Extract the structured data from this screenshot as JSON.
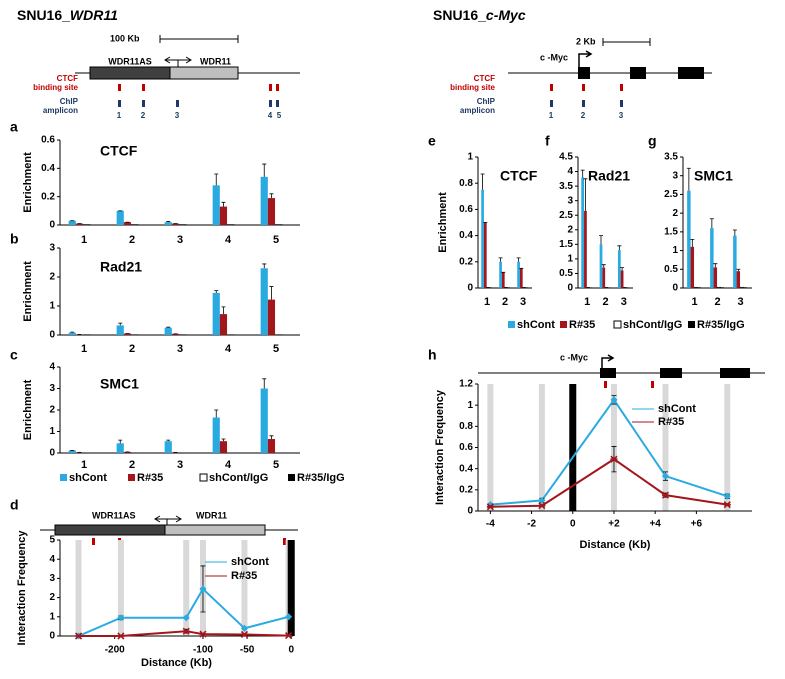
{
  "figure": {
    "left_heading": {
      "prefix": "SNU16_",
      "gene": "WDR11"
    },
    "right_heading": {
      "prefix": "SNU16_",
      "gene": "c-Myc"
    },
    "left_map": {
      "scale": "100 Kb",
      "genes": [
        "WDR11AS",
        "WDR11"
      ],
      "ctcf_label": [
        "CTCF",
        "binding site"
      ],
      "amplicon_label": [
        "ChIP",
        "amplicon"
      ],
      "amplicons": [
        "1",
        "2",
        "3",
        "4",
        "5"
      ]
    },
    "right_map": {
      "scale": "2 Kb",
      "gene": "c -Myc",
      "ctcf_label": [
        "CTCF",
        "binding site"
      ],
      "amplicon_label": [
        "ChIP",
        "amplicon"
      ],
      "amplicons": [
        "1",
        "2",
        "3"
      ]
    },
    "d_map": {
      "genes": [
        "WDR11AS",
        "WDR11"
      ]
    },
    "h_map": {
      "gene": "c -Myc"
    }
  },
  "chart_data": [
    {
      "panel": "a",
      "type": "bar",
      "title": "CTCF",
      "ylabel": "Enrichment",
      "categories": [
        "1",
        "2",
        "3",
        "4",
        "5"
      ],
      "ylim": [
        0,
        0.6
      ],
      "yticks": [
        0,
        0.2,
        0.4,
        0.6
      ],
      "series": [
        {
          "color": "#29abe2",
          "values": [
            0.03,
            0.1,
            0.02,
            0.28,
            0.34
          ],
          "errors": [
            0,
            0,
            0.005,
            0.08,
            0.09
          ]
        },
        {
          "color": "#a3161c",
          "values": [
            0.01,
            0.02,
            0.01,
            0.13,
            0.19
          ],
          "errors": [
            0,
            0,
            0,
            0.03,
            0.03
          ]
        },
        {
          "color": "#ffffff",
          "values": [
            0.003,
            0.003,
            0.003,
            0.003,
            0.003
          ]
        },
        {
          "color": "#000000",
          "values": [
            0.002,
            0.002,
            0.002,
            0.002,
            0.002
          ]
        }
      ]
    },
    {
      "panel": "b",
      "type": "bar",
      "title": "Rad21",
      "ylabel": "Enrichment",
      "categories": [
        "1",
        "2",
        "3",
        "4",
        "5"
      ],
      "ylim": [
        0,
        3
      ],
      "yticks": [
        0,
        1,
        2,
        3
      ],
      "series": [
        {
          "color": "#29abe2",
          "values": [
            0.08,
            0.33,
            0.25,
            1.45,
            2.3
          ],
          "errors": [
            0.02,
            0.08,
            0.02,
            0.08,
            0.15
          ]
        },
        {
          "color": "#a3161c",
          "values": [
            0.02,
            0.05,
            0.04,
            0.72,
            1.22
          ],
          "errors": [
            0,
            0,
            0,
            0.25,
            0.45
          ]
        },
        {
          "color": "#ffffff",
          "values": [
            0.01,
            0.01,
            0.01,
            0.01,
            0.01
          ]
        },
        {
          "color": "#000000",
          "values": [
            0.01,
            0.01,
            0.01,
            0.01,
            0.01
          ]
        }
      ]
    },
    {
      "panel": "c",
      "type": "bar",
      "title": "SMC1",
      "ylabel": "Enrichment",
      "categories": [
        "1",
        "2",
        "3",
        "4",
        "5"
      ],
      "ylim": [
        0,
        4
      ],
      "yticks": [
        0,
        1,
        2,
        3,
        4
      ],
      "series": [
        {
          "name": "shCont",
          "color": "#29abe2",
          "values": [
            0.12,
            0.45,
            0.55,
            1.65,
            3.0
          ],
          "errors": [
            0,
            0.15,
            0.05,
            0.35,
            0.45
          ]
        },
        {
          "name": "R#35",
          "color": "#a3161c",
          "values": [
            0.03,
            0.05,
            0.03,
            0.55,
            0.65
          ],
          "errors": [
            0,
            0,
            0,
            0.1,
            0.15
          ]
        },
        {
          "name": "shCont/IgG",
          "color": "#ffffff",
          "values": [
            0.01,
            0.01,
            0.01,
            0.01,
            0.01
          ]
        },
        {
          "name": "R#35/IgG",
          "color": "#000000",
          "values": [
            0.01,
            0.01,
            0.01,
            0.01,
            0.01
          ]
        }
      ]
    },
    {
      "panel": "d",
      "type": "line",
      "ylabel": "Interaction Frequency",
      "xlabel": "Distance (Kb)",
      "x": [
        -241,
        -193,
        -119,
        -100,
        -53,
        -3
      ],
      "xlim": [
        -262,
        2
      ],
      "xticks": [
        -200,
        -100,
        -50,
        0
      ],
      "ylim": [
        0,
        5
      ],
      "yticks": [
        0,
        1,
        2,
        3,
        4,
        5
      ],
      "viewpoint_x": 0,
      "series": [
        {
          "name": "shCont",
          "color": "#29abe2",
          "values": [
            0,
            0.95,
            0.95,
            2.45,
            0.4,
            1.0
          ],
          "errors": [
            0,
            0.1,
            0,
            1.2,
            0.05,
            0
          ]
        },
        {
          "name": "R#35",
          "color": "#a3161c",
          "values": [
            0,
            0,
            0.25,
            0.1,
            0.08,
            0.02
          ],
          "errors": [
            0,
            0,
            0.1,
            0,
            0,
            0
          ]
        }
      ]
    },
    {
      "panel": "e",
      "type": "bar",
      "title": "CTCF",
      "ylabel": "Enrichment",
      "categories": [
        "1",
        "2",
        "3"
      ],
      "ylim": [
        0,
        1
      ],
      "yticks": [
        0,
        0.2,
        0.4,
        0.6,
        0.8,
        1
      ],
      "series": [
        {
          "color": "#29abe2",
          "values": [
            0.75,
            0.2,
            0.2
          ],
          "errors": [
            0.12,
            0.03,
            0.03
          ]
        },
        {
          "color": "#a3161c",
          "values": [
            0.5,
            0.12,
            0.15
          ],
          "errors": [
            0,
            0,
            0
          ]
        },
        {
          "color": "#ffffff",
          "values": [
            0.005,
            0.005,
            0.005
          ]
        },
        {
          "color": "#000000",
          "values": [
            0.005,
            0.005,
            0.005
          ]
        }
      ]
    },
    {
      "panel": "f",
      "type": "bar",
      "title": "Rad21",
      "categories": [
        "1",
        "2",
        "3"
      ],
      "ylim": [
        0,
        4.5
      ],
      "yticks": [
        0,
        0.5,
        1,
        1.5,
        2,
        2.5,
        3,
        3.5,
        4,
        4.5
      ],
      "series": [
        {
          "name": "shCont",
          "color": "#29abe2",
          "values": [
            3.8,
            1.5,
            1.3
          ],
          "errors": [
            0.25,
            0.3,
            0.15
          ]
        },
        {
          "name": "R#35",
          "color": "#a3161c",
          "values": [
            2.65,
            0.7,
            0.6
          ],
          "errors": [
            1.1,
            0.1,
            0.1
          ]
        },
        {
          "name": "shCont/IgG",
          "color": "#ffffff",
          "values": [
            0.02,
            0.02,
            0.02
          ]
        },
        {
          "name": "R#35/IgG",
          "color": "#000000",
          "values": [
            0.02,
            0.02,
            0.02
          ]
        }
      ]
    },
    {
      "panel": "g",
      "type": "bar",
      "title": "SMC1",
      "categories": [
        "1",
        "2",
        "3"
      ],
      "ylim": [
        0,
        3.5
      ],
      "yticks": [
        0,
        0.5,
        1,
        1.5,
        2,
        2.5,
        3,
        3.5
      ],
      "series": [
        {
          "color": "#29abe2",
          "values": [
            2.6,
            1.6,
            1.4
          ],
          "errors": [
            0.6,
            0.25,
            0.15
          ]
        },
        {
          "color": "#a3161c",
          "values": [
            1.1,
            0.55,
            0.45
          ],
          "errors": [
            0.2,
            0.1,
            0.05
          ]
        },
        {
          "color": "#ffffff",
          "values": [
            0.02,
            0.02,
            0.02
          ]
        },
        {
          "color": "#000000",
          "values": [
            0.02,
            0.02,
            0.02
          ]
        }
      ]
    },
    {
      "panel": "h",
      "type": "line",
      "ylabel": "Interaction Frequency",
      "xlabel": "Distance (Kb)",
      "x": [
        -4,
        -1.5,
        2,
        4.5,
        7.5
      ],
      "xlim": [
        -4.6,
        8.7
      ],
      "xticks": [
        -4,
        -2,
        0,
        {
          "value": 2,
          "label": "+2"
        },
        {
          "value": 4,
          "label": "+4"
        },
        {
          "value": 6,
          "label": "+6"
        }
      ],
      "ylim": [
        0,
        1.2
      ],
      "yticks": [
        0,
        0.2,
        0.4,
        0.6,
        0.8,
        1,
        1.2
      ],
      "viewpoint_x": 0,
      "series": [
        {
          "name": "shCont",
          "color": "#29abe2",
          "values": [
            0.06,
            0.1,
            1.05,
            0.33,
            0.14
          ],
          "errors": [
            0.01,
            0.02,
            0.04,
            0.04,
            0.02
          ]
        },
        {
          "name": "R#35",
          "color": "#a3161c",
          "values": [
            0.04,
            0.05,
            0.49,
            0.15,
            0.06
          ],
          "errors": [
            0.01,
            0.01,
            0.12,
            0.02,
            0.01
          ]
        }
      ]
    }
  ]
}
